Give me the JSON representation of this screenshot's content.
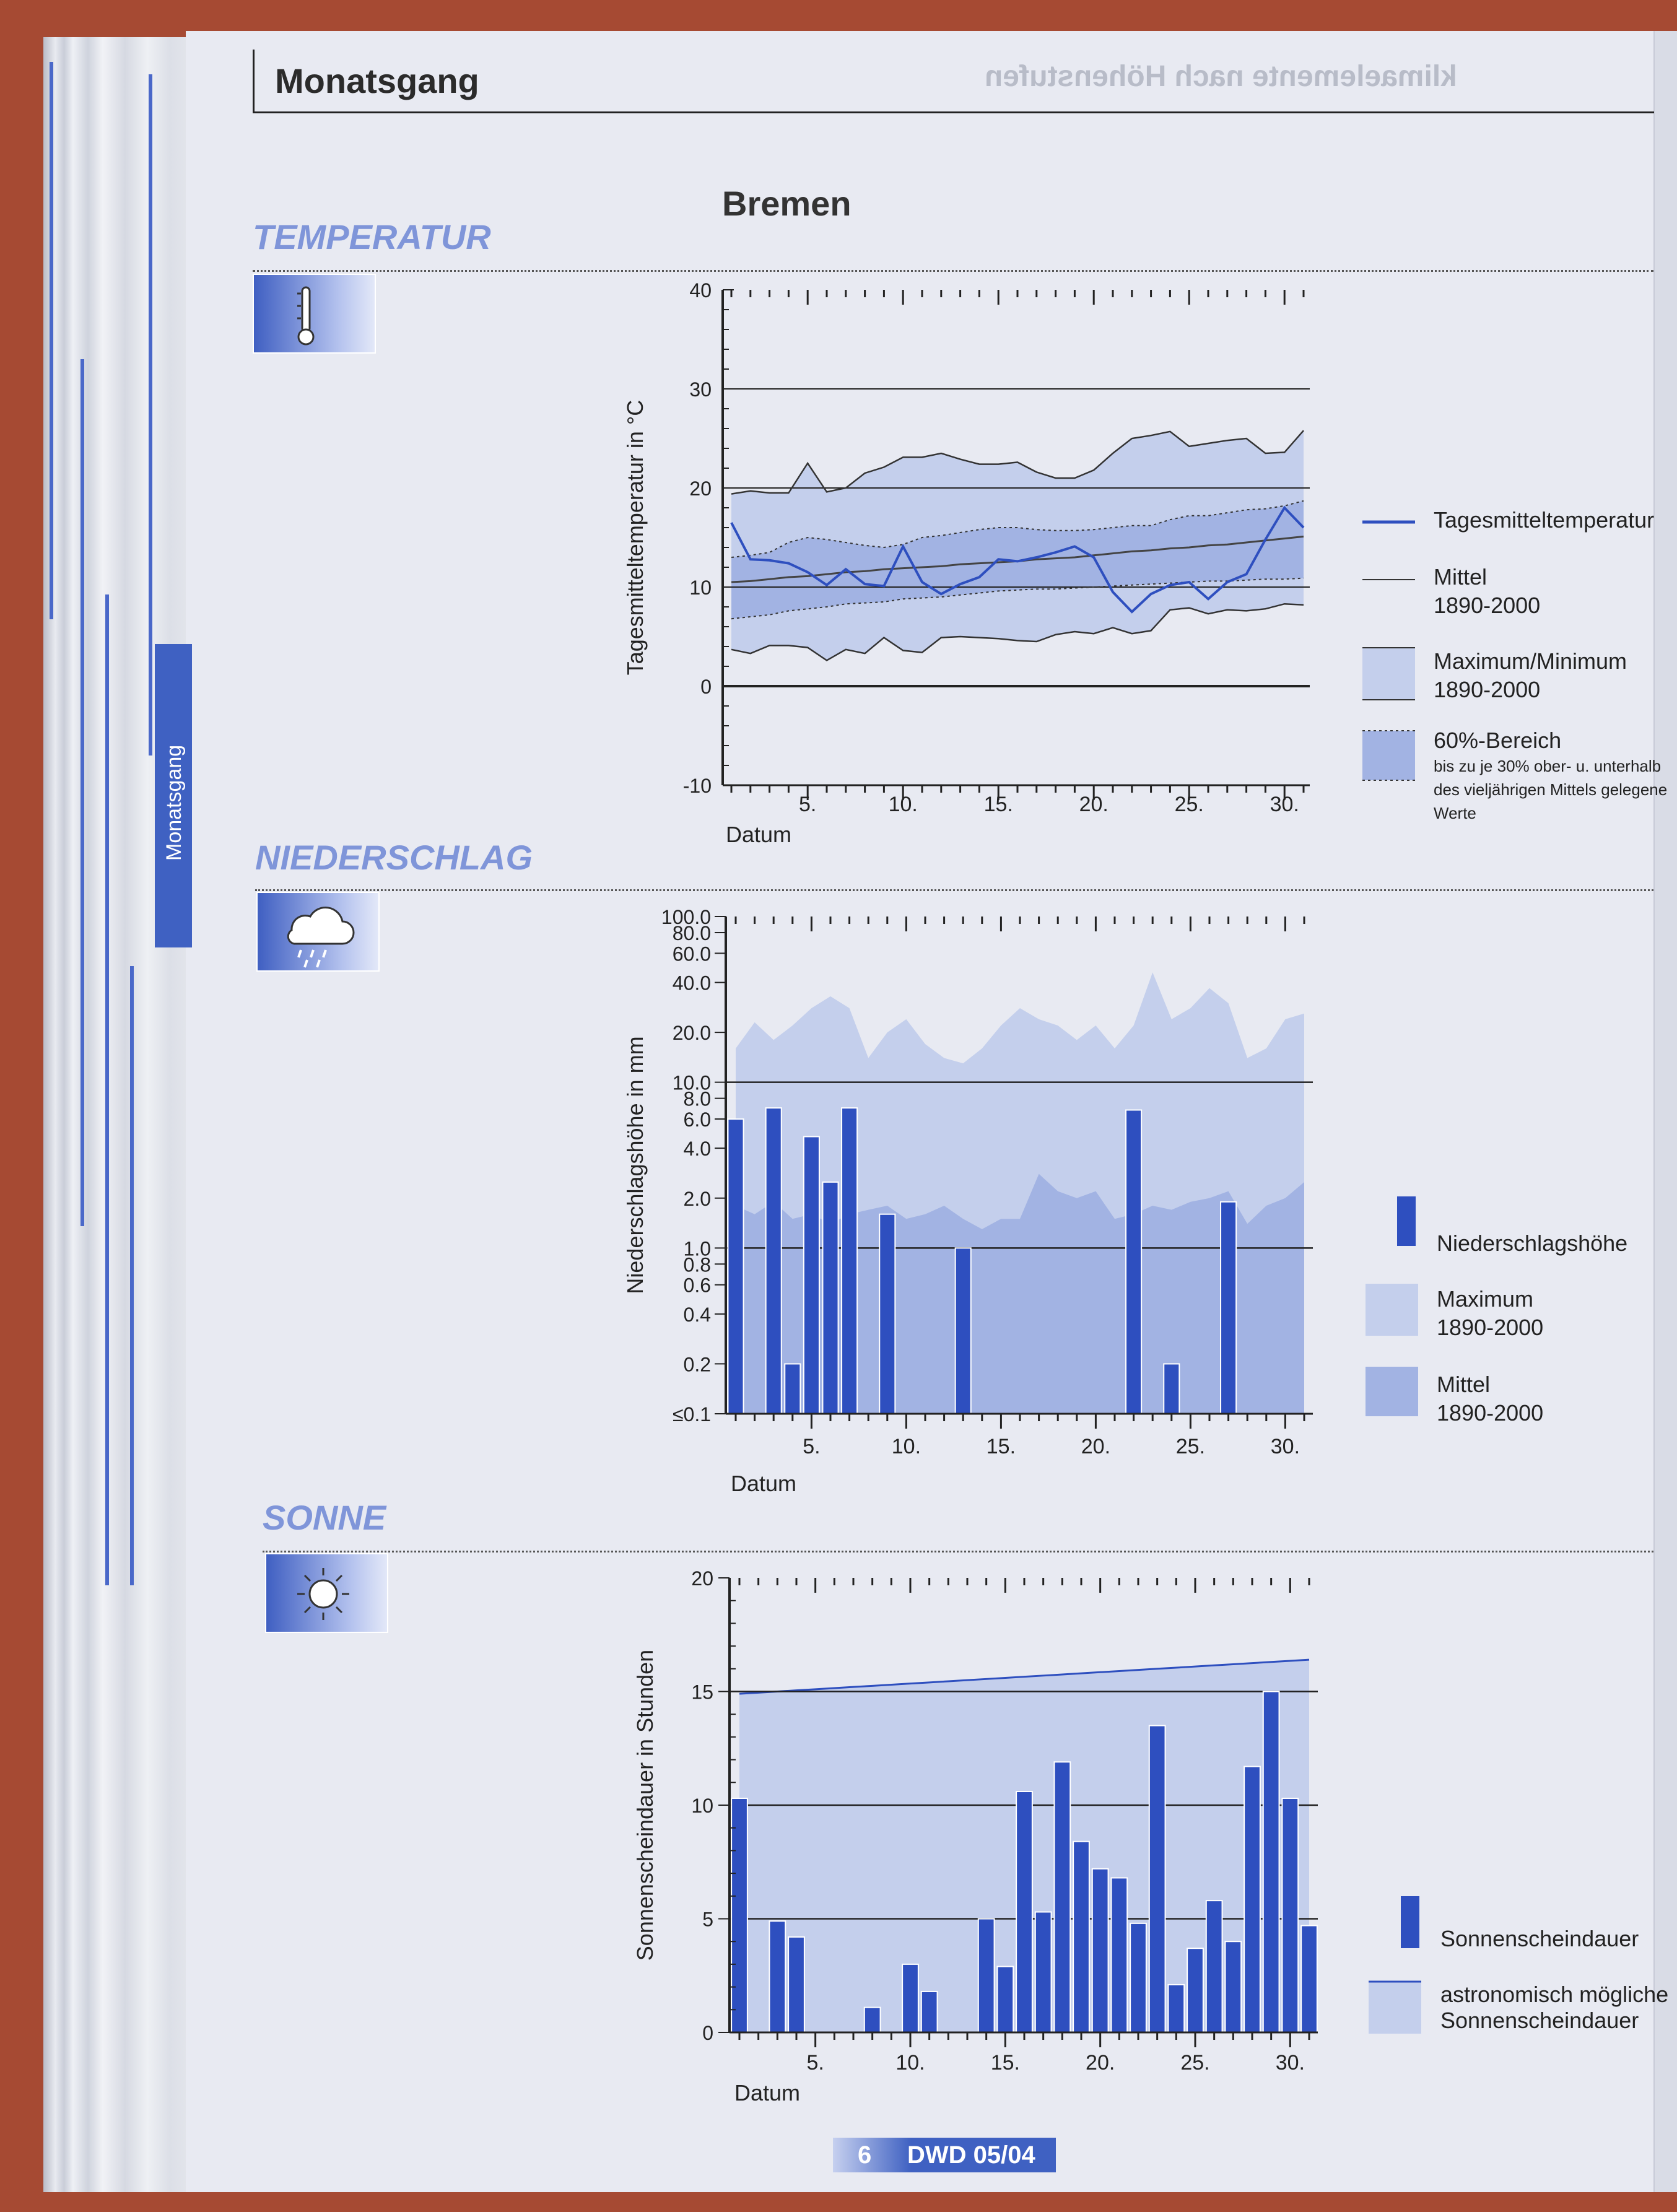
{
  "header": {
    "title": "Monatsgang",
    "ghost_text": "klimaelemente nach Höhenstufen"
  },
  "tab": {
    "label": "Monatsgang"
  },
  "station": "Bremen",
  "sections": {
    "temperature": "TEMPERATUR",
    "precipitation": "NIEDERSCHLAG",
    "sun": "SONNE"
  },
  "icons": {
    "temperature": "thermometer-icon",
    "precipitation": "rain-cloud-icon",
    "sun": "sun-icon"
  },
  "colors": {
    "series": "#2e4fbf",
    "max_min": "#c4cfec",
    "sixty": "#a2b3e3",
    "mean_line": "#444444",
    "page": "#e8eaf2"
  },
  "footer": {
    "page": "6",
    "pub": "DWD 05/04"
  },
  "chart_data": [
    {
      "id": "temperature",
      "type": "line",
      "ylabel": "Tagesmitteltemperatur in °C",
      "xlabel": "Datum",
      "ylim": [
        -10,
        40
      ],
      "yticks": [
        "40",
        "30",
        "20",
        "10",
        "0",
        "-10"
      ],
      "xticks": [
        "5.",
        "10.",
        "15.",
        "20.",
        "25.",
        "30."
      ],
      "x": [
        1,
        2,
        3,
        4,
        5,
        6,
        7,
        8,
        9,
        10,
        11,
        12,
        13,
        14,
        15,
        16,
        17,
        18,
        19,
        20,
        21,
        22,
        23,
        24,
        25,
        26,
        27,
        28,
        29,
        30,
        31
      ],
      "series": [
        {
          "name": "Tagesmitteltemperatur",
          "values": [
            16.5,
            12.8,
            12.7,
            12.4,
            11.5,
            10.2,
            11.8,
            10.3,
            10.1,
            14.1,
            10.5,
            9.3,
            10.3,
            11.0,
            12.8,
            12.6,
            13.0,
            13.5,
            14.1,
            13.0,
            9.5,
            7.5,
            9.3,
            10.2,
            10.5,
            8.8,
            10.5,
            11.3,
            14.8,
            18.0,
            16.0
          ]
        },
        {
          "name": "Mittel 1890-2000",
          "values": [
            10.5,
            10.6,
            10.8,
            11.0,
            11.1,
            11.3,
            11.5,
            11.6,
            11.8,
            11.9,
            12.0,
            12.1,
            12.3,
            12.4,
            12.5,
            12.6,
            12.8,
            12.9,
            13.0,
            13.2,
            13.4,
            13.6,
            13.7,
            13.9,
            14.0,
            14.2,
            14.3,
            14.5,
            14.7,
            14.9,
            15.1
          ]
        },
        {
          "name": "Maximum 1890-2000",
          "values": [
            19.4,
            19.7,
            19.5,
            19.5,
            22.5,
            19.6,
            20.0,
            21.5,
            22.1,
            23.1,
            23.1,
            23.5,
            22.9,
            22.4,
            22.4,
            22.6,
            21.6,
            21.0,
            21.0,
            21.8,
            23.5,
            25.0,
            25.3,
            25.7,
            24.2,
            24.5,
            24.8,
            25.0,
            23.5,
            23.6,
            25.8
          ]
        },
        {
          "name": "Minimum 1890-2000",
          "values": [
            3.7,
            3.3,
            4.1,
            4.1,
            3.9,
            2.6,
            3.7,
            3.3,
            4.9,
            3.6,
            3.4,
            4.9,
            5.0,
            4.9,
            4.8,
            4.6,
            4.5,
            5.2,
            5.5,
            5.3,
            5.9,
            5.3,
            5.6,
            7.7,
            7.9,
            7.3,
            7.7,
            7.6,
            7.8,
            8.3,
            8.2
          ]
        },
        {
          "name": "60%-Bereich oben",
          "values": [
            13.0,
            13.2,
            13.5,
            14.5,
            15.0,
            14.8,
            14.5,
            14.2,
            14.0,
            14.3,
            15.0,
            15.2,
            15.5,
            15.8,
            16.0,
            16.0,
            15.8,
            15.7,
            15.7,
            15.8,
            16.0,
            16.2,
            16.2,
            16.8,
            17.2,
            17.2,
            17.5,
            17.8,
            17.9,
            18.2,
            18.7
          ]
        },
        {
          "name": "60%-Bereich unten",
          "values": [
            6.8,
            7.0,
            7.2,
            7.6,
            7.8,
            8.0,
            8.3,
            8.4,
            8.5,
            8.8,
            8.9,
            9.0,
            9.2,
            9.4,
            9.6,
            9.7,
            9.8,
            9.8,
            9.9,
            10.0,
            10.1,
            10.2,
            10.3,
            10.4,
            10.5,
            10.6,
            10.6,
            10.7,
            10.8,
            10.8,
            10.9
          ]
        }
      ],
      "legend": [
        {
          "label": "Tagesmitteltemperatur",
          "kind": "line"
        },
        {
          "label": "Mittel",
          "sub": "1890-2000",
          "kind": "thin"
        },
        {
          "label": "Maximum/Minimum",
          "sub": "1890-2000",
          "kind": "band"
        },
        {
          "label": "60%-Bereich",
          "sub": "bis zu je 30% ober- u. unterhalb",
          "sub2": "des vieljährigen Mittels gelegene",
          "sub3": "Werte",
          "kind": "band60"
        }
      ]
    },
    {
      "id": "precipitation",
      "type": "bar",
      "ylabel": "Niederschlagshöhe in mm",
      "xlabel": "Datum",
      "scale": "log",
      "yticks": [
        100,
        80,
        60,
        40,
        20,
        10,
        8,
        6,
        4,
        2,
        1,
        0.8,
        0.6,
        0.4,
        0.2,
        0.1
      ],
      "yticklabels": [
        "100.0",
        "80.0",
        "60.0",
        "40.0",
        "20.0",
        "10.0",
        "8.0",
        "6.0",
        "4.0",
        "2.0",
        "1.0",
        "0.8",
        "0.6",
        "0.4",
        "0.2",
        "≤0.1"
      ],
      "xticks": [
        "5.",
        "10.",
        "15.",
        "20.",
        "25.",
        "30."
      ],
      "x": [
        1,
        2,
        3,
        4,
        5,
        6,
        7,
        8,
        9,
        10,
        11,
        12,
        13,
        14,
        15,
        16,
        17,
        18,
        19,
        20,
        21,
        22,
        23,
        24,
        25,
        26,
        27,
        28,
        29,
        30,
        31
      ],
      "values": [
        6.0,
        0,
        7.0,
        0.2,
        4.7,
        2.5,
        7.0,
        0,
        1.6,
        0,
        0,
        0,
        1.0,
        0,
        0,
        0,
        0,
        0,
        0,
        0,
        0,
        6.8,
        0,
        0.2,
        0,
        0,
        1.9,
        0,
        0,
        0,
        0
      ],
      "series": [
        {
          "name": "Maximum 1890-2000",
          "values": [
            16.0,
            23.0,
            18.0,
            22.0,
            28.0,
            33.0,
            28.0,
            14.0,
            20.0,
            24.0,
            17.0,
            14.0,
            13.0,
            16.0,
            22.0,
            28.0,
            24.0,
            22.0,
            18.0,
            22.0,
            16.0,
            22.0,
            46.0,
            24.0,
            28.0,
            37.0,
            30.0,
            14.0,
            16.0,
            24.0,
            26.0
          ]
        },
        {
          "name": "Mittel 1890-2000",
          "values": [
            1.8,
            1.6,
            1.9,
            1.5,
            1.6,
            1.4,
            1.6,
            1.7,
            1.8,
            1.5,
            1.6,
            1.8,
            1.5,
            1.3,
            1.5,
            1.5,
            2.8,
            2.2,
            2.0,
            2.2,
            1.5,
            1.6,
            1.8,
            1.7,
            1.9,
            2.0,
            2.2,
            1.4,
            1.8,
            2.0,
            2.5
          ]
        }
      ],
      "legend": [
        {
          "label": "Niederschlagshöhe",
          "kind": "bar"
        },
        {
          "label": "Maximum",
          "sub": "1890-2000",
          "kind": "band"
        },
        {
          "label": "Mittel",
          "sub": "1890-2000",
          "kind": "band60"
        }
      ]
    },
    {
      "id": "sun",
      "type": "bar",
      "ylabel": "Sonnenscheindauer in Stunden",
      "xlabel": "Datum",
      "ylim": [
        0,
        20
      ],
      "yticks": [
        "20",
        "15",
        "10",
        "5",
        "0"
      ],
      "xticks": [
        "5.",
        "10.",
        "15.",
        "20.",
        "25.",
        "30."
      ],
      "x": [
        1,
        2,
        3,
        4,
        5,
        6,
        7,
        8,
        9,
        10,
        11,
        12,
        13,
        14,
        15,
        16,
        17,
        18,
        19,
        20,
        21,
        22,
        23,
        24,
        25,
        26,
        27,
        28,
        29,
        30,
        31
      ],
      "values": [
        10.3,
        0,
        4.9,
        4.2,
        0,
        0,
        0,
        1.1,
        0,
        3.0,
        1.8,
        0,
        0,
        5.0,
        2.9,
        10.6,
        5.3,
        11.9,
        8.4,
        7.2,
        6.8,
        4.8,
        13.5,
        2.1,
        3.7,
        5.8,
        4.0,
        11.7,
        15.0,
        10.3,
        4.7
      ],
      "series": [
        {
          "name": "astronomisch mögliche Sonnenscheindauer",
          "values": [
            14.9,
            14.95,
            15.0,
            15.05,
            15.1,
            15.15,
            15.2,
            15.25,
            15.3,
            15.35,
            15.4,
            15.45,
            15.5,
            15.55,
            15.6,
            15.65,
            15.7,
            15.75,
            15.8,
            15.85,
            15.9,
            15.95,
            16.0,
            16.05,
            16.1,
            16.15,
            16.2,
            16.25,
            16.3,
            16.35,
            16.4
          ]
        }
      ],
      "legend": [
        {
          "label": "Sonnenscheindauer",
          "kind": "bar"
        },
        {
          "label": "astronomisch mögliche",
          "sub": "Sonnenscheindauer",
          "kind": "astro"
        }
      ]
    }
  ]
}
